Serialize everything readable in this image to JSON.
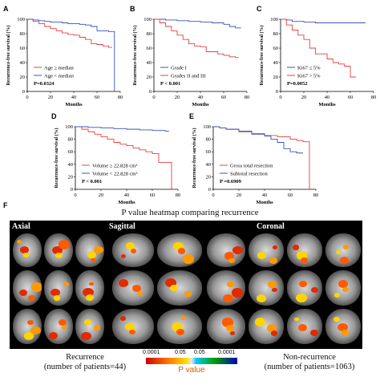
{
  "panels": [
    {
      "id": "A",
      "legend": [
        "Age ≥ median",
        "Age < median"
      ],
      "pvalue": "P=0.0324",
      "xticks": [
        "0",
        "20",
        "40",
        "60",
        "80"
      ],
      "yticks": [
        "0",
        "20",
        "40",
        "60",
        "80",
        "100"
      ],
      "xlabel": "Months",
      "ylabel": "Recurrence-free survival (%)"
    },
    {
      "id": "B",
      "legend": [
        "Grade I",
        "Grades II and III"
      ],
      "pvalue": "P < 0.001",
      "xticks": [
        "0",
        "20",
        "40",
        "60",
        "80"
      ],
      "yticks": [
        "0",
        "20",
        "40",
        "60",
        "80",
        "100"
      ],
      "xlabel": "Months",
      "ylabel": "Recurrence-free survival (%)"
    },
    {
      "id": "C",
      "legend": [
        "Ki67 ≤ 5%",
        "Ki67 > 5%"
      ],
      "pvalue": "P=0.0052",
      "xticks": [
        "0",
        "20",
        "40",
        "60",
        "80"
      ],
      "yticks": [
        "0",
        "20",
        "40",
        "60",
        "80",
        "100"
      ],
      "xlabel": "Months",
      "ylabel": "Recurrence-free survival (%)"
    },
    {
      "id": "D",
      "legend": [
        "Volume ≥ 22.828 cm³",
        "Volume < 22.828 cm³"
      ],
      "pvalue": "P < 0.001",
      "xticks": [
        "0",
        "20",
        "40",
        "60",
        "80"
      ],
      "yticks": [
        "0",
        "20",
        "40",
        "60",
        "80",
        "100"
      ],
      "xlabel": "Months",
      "ylabel": "Recurrence-free survival (%)"
    },
    {
      "id": "E",
      "legend": [
        "Gross total resection",
        "Subtotal resection"
      ],
      "pvalue": "P =0.6909",
      "xticks": [
        "0",
        "20",
        "40",
        "60",
        "80"
      ],
      "yticks": [
        "0",
        "20",
        "40",
        "60",
        "80",
        "100"
      ],
      "xlabel": "Months",
      "ylabel": "Recurrence-free survival (%)"
    }
  ],
  "chart_data": [
    {
      "type": "line",
      "panel": "A",
      "xlim": [
        0,
        80
      ],
      "ylim": [
        0,
        100
      ],
      "series": [
        {
          "name": "Age ≥ median",
          "color": "#e8403f",
          "x": [
            0,
            5,
            10,
            15,
            20,
            25,
            30,
            35,
            40,
            45,
            50,
            55,
            60,
            65,
            70,
            73
          ],
          "y": [
            100,
            97,
            94,
            90,
            87,
            84,
            81,
            79,
            78,
            75,
            72,
            66,
            65,
            63,
            61,
            61
          ]
        },
        {
          "name": "Age < median",
          "color": "#3a55b4",
          "x": [
            0,
            5,
            10,
            15,
            20,
            25,
            30,
            35,
            40,
            45,
            50,
            55,
            60,
            65,
            70,
            73,
            75
          ],
          "y": [
            100,
            99,
            98,
            97,
            96,
            96,
            95,
            94,
            94,
            93,
            92,
            90,
            84,
            84,
            83,
            83,
            0
          ]
        }
      ]
    },
    {
      "type": "line",
      "panel": "B",
      "xlim": [
        0,
        80
      ],
      "ylim": [
        0,
        100
      ],
      "series": [
        {
          "name": "Grade I",
          "color": "#3a55b4",
          "x": [
            0,
            10,
            20,
            30,
            40,
            50,
            60,
            65,
            70,
            75
          ],
          "y": [
            100,
            99,
            98,
            97,
            96,
            95,
            93,
            90,
            88,
            88
          ]
        },
        {
          "name": "Grades II and III",
          "color": "#e8403f",
          "x": [
            0,
            5,
            10,
            15,
            20,
            25,
            30,
            35,
            40,
            45,
            50,
            55,
            60,
            65,
            70,
            73
          ],
          "y": [
            100,
            95,
            90,
            84,
            78,
            72,
            66,
            63,
            62,
            55,
            55,
            52,
            50,
            48,
            47,
            47
          ]
        }
      ]
    },
    {
      "type": "line",
      "panel": "C",
      "xlim": [
        0,
        80
      ],
      "ylim": [
        0,
        100
      ],
      "series": [
        {
          "name": "Ki67 ≤ 5%",
          "color": "#3a55b4",
          "x": [
            0,
            5,
            10,
            20,
            30,
            40,
            50,
            60,
            65,
            70,
            73
          ],
          "y": [
            100,
            99,
            97,
            96,
            95,
            95,
            95,
            95,
            95,
            95,
            95
          ]
        },
        {
          "name": "Ki67 > 5%",
          "color": "#e8403f",
          "x": [
            0,
            5,
            10,
            15,
            20,
            25,
            30,
            40,
            45,
            50,
            55,
            60,
            65
          ],
          "y": [
            100,
            92,
            85,
            78,
            72,
            60,
            52,
            45,
            40,
            38,
            35,
            20,
            20
          ]
        }
      ]
    },
    {
      "type": "line",
      "panel": "D",
      "xlim": [
        0,
        80
      ],
      "ylim": [
        0,
        100
      ],
      "series": [
        {
          "name": "Volume ≥ 22.828 cm³",
          "color": "#e8403f",
          "x": [
            0,
            5,
            10,
            15,
            20,
            25,
            30,
            35,
            40,
            45,
            50,
            55,
            60,
            65,
            70,
            73,
            75
          ],
          "y": [
            100,
            96,
            92,
            88,
            84,
            80,
            75,
            72,
            70,
            66,
            63,
            60,
            57,
            43,
            43,
            43,
            0
          ]
        },
        {
          "name": "Volume < 22.828 cm³",
          "color": "#3a55b4",
          "x": [
            0,
            10,
            20,
            30,
            40,
            50,
            60,
            70,
            73
          ],
          "y": [
            100,
            99,
            98,
            97,
            96,
            95,
            94,
            93,
            93
          ]
        }
      ]
    },
    {
      "type": "line",
      "panel": "E",
      "xlim": [
        0,
        80
      ],
      "ylim": [
        0,
        100
      ],
      "series": [
        {
          "name": "Gross total resection",
          "color": "#e8403f",
          "x": [
            0,
            5,
            10,
            20,
            30,
            40,
            50,
            60,
            65,
            70,
            73,
            75
          ],
          "y": [
            100,
            98,
            96,
            92,
            89,
            86,
            84,
            80,
            78,
            76,
            76,
            0
          ]
        },
        {
          "name": "Subtotal resection",
          "color": "#3a55b4",
          "x": [
            0,
            5,
            10,
            20,
            30,
            40,
            45,
            50,
            55,
            60,
            65,
            70
          ],
          "y": [
            100,
            98,
            96,
            93,
            88,
            85,
            80,
            75,
            65,
            60,
            58,
            58
          ]
        }
      ]
    }
  ],
  "heatmap": {
    "panel_label": "F",
    "title": "P value heatmap comparing recurrence",
    "regions": [
      "Axial",
      "Sagittal",
      "Coronal"
    ],
    "left_label_1": "Recurrence",
    "left_label_2": "(number of patients=44)",
    "right_label_1": "Non-recurrence",
    "right_label_2": "(number of patients=1063)",
    "colorbar_ticks": [
      "0.0001",
      "0.05",
      "0.05",
      "0.0001"
    ],
    "colorbar_label": "P value"
  }
}
